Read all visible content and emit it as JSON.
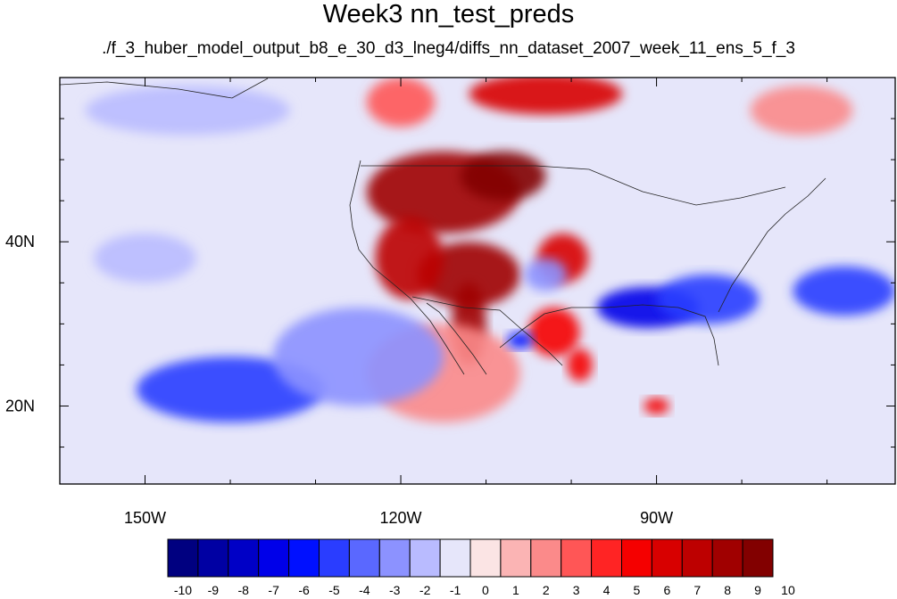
{
  "title": "Week3 nn_test_preds",
  "subtitle": "./f_3_huber_model_output_b8_e_30_d3_lneg4/diffs_nn_dataset_2007_week_11_ens_5_f_3",
  "map": {
    "lon_range": [
      -160,
      -62
    ],
    "lat_range": [
      10.5,
      60
    ],
    "x_tick_labels": [
      {
        "lon": -150,
        "label": "150W"
      },
      {
        "lon": -120,
        "label": "120W"
      },
      {
        "lon": -90,
        "label": "90W"
      }
    ],
    "y_tick_labels": [
      {
        "lat": 40,
        "label": "40N"
      },
      {
        "lat": 20,
        "label": "20N"
      }
    ],
    "background_color": "#e6e6fa",
    "anomaly_regions": [
      {
        "lon": -115,
        "lat": 46,
        "value": 8,
        "rx": 9,
        "ry": 5
      },
      {
        "lon": -108,
        "lat": 48,
        "value": 9,
        "rx": 5,
        "ry": 3
      },
      {
        "lon": -112,
        "lat": 36,
        "value": 8,
        "rx": 6,
        "ry": 4
      },
      {
        "lon": -119,
        "lat": 38,
        "value": 7,
        "rx": 4,
        "ry": 5
      },
      {
        "lon": -112,
        "lat": 30,
        "value": 8,
        "rx": 2,
        "ry": 5
      },
      {
        "lon": -101,
        "lat": 38,
        "value": 6,
        "rx": 3,
        "ry": 3
      },
      {
        "lon": -102,
        "lat": 29,
        "value": 5,
        "rx": 3,
        "ry": 3
      },
      {
        "lon": -99,
        "lat": 25,
        "value": 5,
        "rx": 1.5,
        "ry": 2
      },
      {
        "lon": -103,
        "lat": 58,
        "value": 6,
        "rx": 9,
        "ry": 2.5
      },
      {
        "lon": -120,
        "lat": 57,
        "value": 3,
        "rx": 4,
        "ry": 3
      },
      {
        "lon": -115,
        "lat": 24,
        "value": 2,
        "rx": 9,
        "ry": 6
      },
      {
        "lon": -90,
        "lat": 20,
        "value": 5,
        "rx": 1.5,
        "ry": 1
      },
      {
        "lon": -73,
        "lat": 56,
        "value": 2,
        "rx": 6,
        "ry": 3
      },
      {
        "lon": -91,
        "lat": 32,
        "value": -6,
        "rx": 6,
        "ry": 2.5
      },
      {
        "lon": -84,
        "lat": 33,
        "value": -4,
        "rx": 6,
        "ry": 3
      },
      {
        "lon": -68,
        "lat": 34,
        "value": -4,
        "rx": 6,
        "ry": 3
      },
      {
        "lon": -106,
        "lat": 28,
        "value": -5,
        "rx": 1.5,
        "ry": 1
      },
      {
        "lon": -103,
        "lat": 36,
        "value": -2,
        "rx": 2.5,
        "ry": 2
      },
      {
        "lon": -140,
        "lat": 22,
        "value": -4,
        "rx": 11,
        "ry": 4
      },
      {
        "lon": -125,
        "lat": 26,
        "value": -2,
        "rx": 10,
        "ry": 6
      },
      {
        "lon": -145,
        "lat": 56,
        "value": -1,
        "rx": 12,
        "ry": 3
      },
      {
        "lon": -150,
        "lat": 38,
        "value": -1,
        "rx": 6,
        "ry": 3
      }
    ]
  },
  "colorbar": {
    "colors": [
      "#000080",
      "#0000a3",
      "#0000c6",
      "#0000e9",
      "#0010ff",
      "#2a3dff",
      "#5a68ff",
      "#8c92ff",
      "#b9bbff",
      "#e6e6fa",
      "#fbe4e4",
      "#fbb4b4",
      "#fb8a8a",
      "#ff5656",
      "#ff2424",
      "#f50000",
      "#d80000",
      "#bd0000",
      "#a00000",
      "#820000"
    ],
    "labels": [
      "-10",
      "-9",
      "-8",
      "-7",
      "-6",
      "-5",
      "-4",
      "-3",
      "-2",
      "-1",
      "0",
      "1",
      "2",
      "3",
      "4",
      "5",
      "6",
      "7",
      "8",
      "9",
      "10"
    ]
  }
}
